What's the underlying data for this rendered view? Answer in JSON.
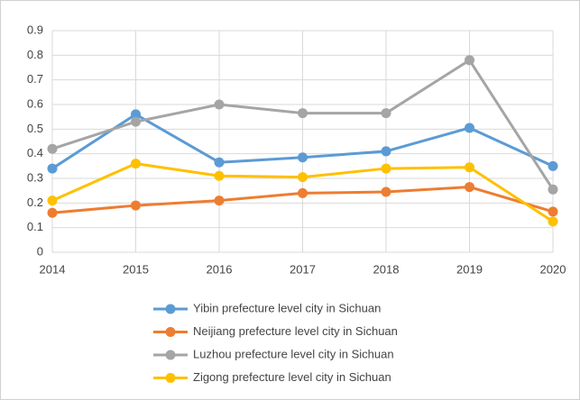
{
  "chart_data": {
    "type": "line",
    "x": [
      2014,
      2015,
      2016,
      2017,
      2018,
      2019,
      2020
    ],
    "xlim": [
      2014,
      2020
    ],
    "xticks": [
      2014,
      2015,
      2016,
      2017,
      2018,
      2019,
      2020
    ],
    "ylim": [
      0,
      0.9
    ],
    "yticks": [
      0,
      0.1,
      0.2,
      0.3,
      0.4,
      0.5,
      0.6,
      0.7,
      0.8,
      0.9
    ],
    "grid": true,
    "legend": "bottom",
    "series": [
      {
        "name": "Yibin prefecture level city in Sichuan",
        "color": "#5b9bd5",
        "values": [
          0.34,
          0.56,
          0.365,
          0.385,
          0.41,
          0.505,
          0.35
        ]
      },
      {
        "name": "Neijiang prefecture level city in Sichuan",
        "color": "#ed7d31",
        "values": [
          0.16,
          0.19,
          0.21,
          0.24,
          0.245,
          0.265,
          0.165
        ]
      },
      {
        "name": "Luzhou prefecture level city in Sichuan",
        "color": "#a5a5a5",
        "values": [
          0.42,
          0.53,
          0.6,
          0.565,
          0.565,
          0.78,
          0.255
        ]
      },
      {
        "name": "Zigong prefecture level city in Sichuan",
        "color": "#ffc000",
        "values": [
          0.21,
          0.36,
          0.31,
          0.305,
          0.34,
          0.345,
          0.125
        ]
      }
    ]
  }
}
